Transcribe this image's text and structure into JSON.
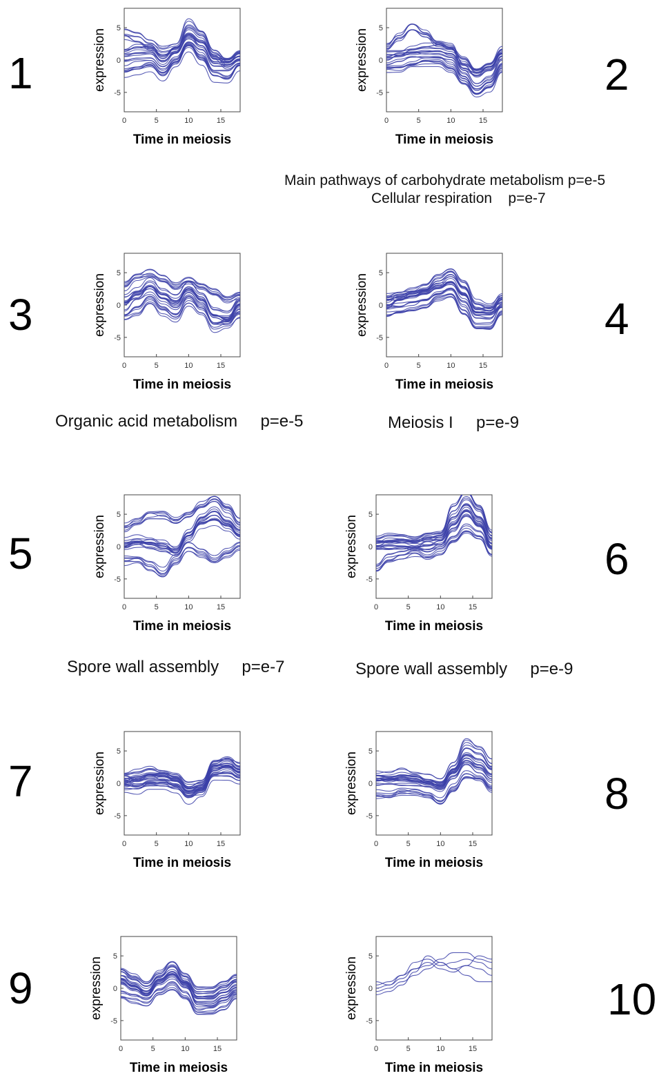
{
  "figure": {
    "panel_numbers": [
      "1",
      "2",
      "3",
      "4",
      "5",
      "6",
      "7",
      "8",
      "9",
      "10"
    ],
    "captions": {
      "c2a": "Main pathways of carbohydrate metabolism p=e-5",
      "c2b": "Cellular respiration    p=e-7",
      "c3": "Organic acid metabolism     p=e-5",
      "c4": "Meiosis I     p=e-9",
      "c5": "Spore wall assembly     p=e-7",
      "c6": "Spore wall assembly     p=e-9"
    },
    "line_color": "#3b3fa8"
  },
  "chart_data": [
    {
      "type": "line",
      "panel": "1",
      "xlabel": "Time in meiosis",
      "ylabel": "expression",
      "xlim": [
        0,
        18
      ],
      "ylim": [
        -8,
        8
      ],
      "xticks": [
        0,
        5,
        10,
        15
      ],
      "yticks": [
        5,
        0,
        -5
      ],
      "x": [
        0,
        2,
        4,
        6,
        8,
        10,
        12,
        14,
        16,
        18
      ],
      "series": [
        {
          "values": [
            0,
            0.5,
            0.5,
            -1,
            0.5,
            3,
            1.5,
            -1,
            -1,
            0
          ]
        },
        {
          "values": [
            4,
            3.5,
            2.5,
            1.5,
            2,
            5.5,
            4,
            1,
            -0.5,
            0.5
          ]
        },
        {
          "values": [
            -2,
            -1.5,
            -1,
            -2.5,
            -0.5,
            2,
            0,
            -2.5,
            -3,
            -1
          ]
        },
        {
          "values": [
            1,
            1.5,
            1.5,
            0,
            1.5,
            3.5,
            2.5,
            0,
            -0.5,
            0.5
          ]
        }
      ]
    },
    {
      "type": "line",
      "panel": "2",
      "xlabel": "Time in meiosis",
      "ylabel": "expression",
      "xlim": [
        0,
        18
      ],
      "ylim": [
        -8,
        8
      ],
      "xticks": [
        0,
        5,
        10,
        15
      ],
      "yticks": [
        5,
        0,
        -5
      ],
      "x": [
        0,
        2,
        4,
        6,
        8,
        10,
        12,
        14,
        16,
        18
      ],
      "series": [
        {
          "values": [
            0,
            0.5,
            1,
            1,
            1,
            0.5,
            -2,
            -4,
            -3,
            0
          ]
        },
        {
          "values": [
            2,
            3.5,
            5,
            4,
            2.5,
            2,
            -1,
            -2,
            -1,
            1.5
          ]
        },
        {
          "values": [
            -1,
            -1,
            -0.5,
            0,
            0,
            -1,
            -3,
            -5,
            -4,
            -1
          ]
        },
        {
          "values": [
            1,
            1,
            1.5,
            2,
            2,
            1.5,
            0,
            -2,
            -1,
            1
          ]
        }
      ]
    },
    {
      "type": "line",
      "panel": "3",
      "xlabel": "Time in meiosis",
      "ylabel": "expression",
      "xlim": [
        0,
        18
      ],
      "ylim": [
        -8,
        8
      ],
      "xticks": [
        0,
        5,
        10,
        15
      ],
      "yticks": [
        5,
        0,
        -5
      ],
      "x": [
        0,
        2,
        4,
        6,
        8,
        10,
        12,
        14,
        16,
        18
      ],
      "series": [
        {
          "values": [
            0,
            1.5,
            2.5,
            1,
            0,
            2,
            0.5,
            -2,
            -2.5,
            0
          ]
        },
        {
          "values": [
            3,
            4.5,
            5,
            4,
            3,
            4,
            3,
            2,
            1,
            1.5
          ]
        },
        {
          "values": [
            -2,
            -1,
            0.5,
            -1,
            -2,
            0.5,
            -1,
            -3.5,
            -3,
            -1.5
          ]
        },
        {
          "values": [
            1,
            2,
            3.5,
            2,
            1,
            3,
            1.5,
            -1,
            -1.5,
            0.5
          ]
        }
      ]
    },
    {
      "type": "line",
      "panel": "4",
      "xlabel": "Time in meiosis",
      "ylabel": "expression",
      "xlim": [
        0,
        18
      ],
      "ylim": [
        -8,
        8
      ],
      "xticks": [
        0,
        5,
        10,
        15
      ],
      "yticks": [
        5,
        0,
        -5
      ],
      "x": [
        0,
        2,
        4,
        6,
        8,
        10,
        12,
        14,
        16,
        18
      ],
      "series": [
        {
          "values": [
            0.5,
            0.5,
            1,
            1.5,
            2.5,
            3,
            1,
            -1.5,
            -1.5,
            0.5
          ]
        },
        {
          "values": [
            1,
            1.5,
            2,
            2.5,
            4,
            5,
            3,
            0,
            -0.5,
            1
          ]
        },
        {
          "values": [
            -1,
            -0.5,
            0,
            0.5,
            1.5,
            2,
            -0.5,
            -3,
            -3,
            -0.5
          ]
        },
        {
          "values": [
            0,
            1,
            1.5,
            2,
            3,
            4,
            2,
            -1,
            -1,
            0
          ]
        }
      ]
    },
    {
      "type": "line",
      "panel": "5",
      "xlabel": "Time in meiosis",
      "ylabel": "expression",
      "xlim": [
        0,
        18
      ],
      "ylim": [
        -8,
        8
      ],
      "xticks": [
        0,
        5,
        10,
        15
      ],
      "yticks": [
        5,
        0,
        -5
      ],
      "x": [
        0,
        2,
        4,
        6,
        8,
        10,
        12,
        14,
        16,
        18
      ],
      "series": [
        {
          "values": [
            0,
            0.5,
            0.5,
            0,
            -1,
            1.5,
            3.5,
            4,
            3,
            1.5
          ]
        },
        {
          "values": [
            3,
            4,
            5,
            5,
            4,
            5,
            6.5,
            7.5,
            6,
            4
          ]
        },
        {
          "values": [
            -2,
            -2,
            -3,
            -4,
            -2,
            0,
            -1,
            -2,
            -1,
            0
          ]
        },
        {
          "values": [
            0.5,
            1,
            0.5,
            0,
            -0.5,
            2,
            4.5,
            5.5,
            4,
            2.5
          ]
        }
      ]
    },
    {
      "type": "line",
      "panel": "6",
      "xlabel": "Time in meiosis",
      "ylabel": "expression",
      "xlim": [
        0,
        18
      ],
      "ylim": [
        -8,
        8
      ],
      "xticks": [
        0,
        5,
        10,
        15
      ],
      "yticks": [
        5,
        0,
        -5
      ],
      "x": [
        0,
        2,
        4,
        6,
        8,
        10,
        12,
        14,
        16,
        18
      ],
      "series": [
        {
          "values": [
            0,
            0,
            0,
            0,
            0,
            0.5,
            3,
            5,
            3.5,
            0
          ]
        },
        {
          "values": [
            1,
            1.5,
            1.5,
            1,
            1.5,
            2,
            6,
            8,
            6,
            2
          ]
        },
        {
          "values": [
            -3,
            -1.5,
            -1,
            -0.5,
            -1,
            -0.5,
            1.5,
            3,
            2,
            -0.5
          ]
        },
        {
          "values": [
            0.5,
            0.5,
            0.5,
            0.5,
            1,
            1,
            4,
            6,
            4,
            1
          ]
        }
      ]
    },
    {
      "type": "line",
      "panel": "7",
      "xlabel": "Time in meiosis",
      "ylabel": "expression",
      "xlim": [
        0,
        18
      ],
      "ylim": [
        -8,
        8
      ],
      "xticks": [
        0,
        5,
        10,
        15
      ],
      "yticks": [
        5,
        0,
        -5
      ],
      "x": [
        0,
        2,
        4,
        6,
        8,
        10,
        12,
        14,
        16,
        18
      ],
      "series": [
        {
          "values": [
            0,
            0.5,
            1,
            1,
            0.5,
            -1,
            -0.5,
            2,
            2.5,
            1.5
          ]
        },
        {
          "values": [
            1,
            1.5,
            2,
            1.5,
            1,
            -0.5,
            0,
            3,
            3.5,
            2.5
          ]
        },
        {
          "values": [
            -1,
            -1,
            -0.5,
            -0.5,
            -1,
            -2.5,
            -1.5,
            1,
            1,
            0.5
          ]
        },
        {
          "values": [
            0.5,
            0,
            0.5,
            0.5,
            0,
            -1.5,
            -1,
            2.5,
            3,
            2
          ]
        }
      ]
    },
    {
      "type": "line",
      "panel": "8",
      "xlabel": "Time in meiosis",
      "ylabel": "expression",
      "xlim": [
        0,
        18
      ],
      "ylim": [
        -8,
        8
      ],
      "xticks": [
        0,
        5,
        10,
        15
      ],
      "yticks": [
        5,
        0,
        -5
      ],
      "x": [
        0,
        2,
        4,
        6,
        8,
        10,
        12,
        14,
        16,
        18
      ],
      "series": [
        {
          "values": [
            0,
            0,
            0,
            0,
            -0.5,
            -1,
            1,
            3,
            2,
            0.5
          ]
        },
        {
          "values": [
            1,
            1,
            1.5,
            1,
            0.5,
            0,
            2.5,
            6,
            5,
            3
          ]
        },
        {
          "values": [
            -1.5,
            -1.5,
            -1,
            -1,
            -1.5,
            -2.5,
            -0.5,
            1.5,
            1,
            -0.5
          ]
        },
        {
          "values": [
            0.5,
            0.5,
            0.5,
            0.5,
            0,
            -0.5,
            1.5,
            4,
            3,
            1.5
          ]
        }
      ]
    },
    {
      "type": "line",
      "panel": "9",
      "xlabel": "Time in meiosis",
      "ylabel": "expression",
      "xlim": [
        0,
        18
      ],
      "ylim": [
        -8,
        8
      ],
      "xticks": [
        0,
        5,
        10,
        15
      ],
      "yticks": [
        5,
        0,
        -5
      ],
      "x": [
        0,
        2,
        4,
        6,
        8,
        10,
        12,
        14,
        16,
        18
      ],
      "series": [
        {
          "values": [
            1,
            0,
            -1,
            1,
            2,
            0.5,
            -1.5,
            -1.5,
            -0.5,
            0.5
          ]
        },
        {
          "values": [
            2.5,
            1.5,
            0.5,
            2,
            3.5,
            1.5,
            -0.5,
            -0.5,
            0.5,
            1.5
          ]
        },
        {
          "values": [
            -1,
            -1.5,
            -2,
            -0.5,
            0.5,
            -1,
            -3.5,
            -3.5,
            -2.5,
            -1
          ]
        },
        {
          "values": [
            1.5,
            0.5,
            -0.5,
            1.5,
            2.5,
            1,
            -2,
            -2,
            -1,
            0
          ]
        }
      ]
    },
    {
      "type": "line",
      "panel": "10",
      "xlabel": "Time in meiosis",
      "ylabel": "expression",
      "xlim": [
        0,
        18
      ],
      "ylim": [
        -8,
        8
      ],
      "xticks": [
        0,
        5,
        10,
        15
      ],
      "yticks": [
        5,
        0,
        -5
      ],
      "x": [
        0,
        2,
        4,
        6,
        8,
        10,
        12,
        14,
        16,
        18
      ],
      "series": [
        {
          "values": [
            -0.5,
            0,
            1,
            2,
            3,
            4,
            3,
            2,
            1,
            1
          ]
        },
        {
          "values": [
            0,
            0.5,
            2,
            4,
            4.5,
            3.5,
            4,
            4.5,
            4,
            3
          ]
        },
        {
          "values": [
            1,
            0.5,
            1.5,
            3,
            4,
            3,
            2.5,
            3.5,
            5,
            4.5
          ]
        },
        {
          "values": [
            -1,
            -0.5,
            0.5,
            2.5,
            5,
            4,
            3,
            3.5,
            3,
            2
          ]
        },
        {
          "values": [
            0.5,
            1,
            2,
            3,
            3.5,
            4.5,
            5.5,
            5.5,
            4.5,
            4
          ]
        }
      ]
    }
  ]
}
